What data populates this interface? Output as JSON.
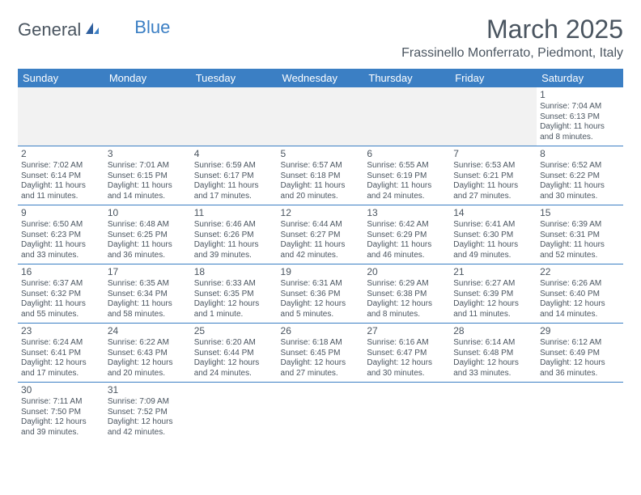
{
  "logo": {
    "general": "General",
    "blue": "Blue"
  },
  "title": "March 2025",
  "location": "Frassinello Monferrato, Piedmont, Italy",
  "colors": {
    "header_bg": "#3b7fc4",
    "header_text": "#ffffff",
    "cell_border": "#3b7fc4",
    "blank_bg": "#f2f2f2",
    "text": "#4a5560"
  },
  "day_headers": [
    "Sunday",
    "Monday",
    "Tuesday",
    "Wednesday",
    "Thursday",
    "Friday",
    "Saturday"
  ],
  "weeks": [
    [
      null,
      null,
      null,
      null,
      null,
      null,
      {
        "n": "1",
        "sunrise": "7:04 AM",
        "sunset": "6:13 PM",
        "dl": "11 hours and 8 minutes."
      }
    ],
    [
      {
        "n": "2",
        "sunrise": "7:02 AM",
        "sunset": "6:14 PM",
        "dl": "11 hours and 11 minutes."
      },
      {
        "n": "3",
        "sunrise": "7:01 AM",
        "sunset": "6:15 PM",
        "dl": "11 hours and 14 minutes."
      },
      {
        "n": "4",
        "sunrise": "6:59 AM",
        "sunset": "6:17 PM",
        "dl": "11 hours and 17 minutes."
      },
      {
        "n": "5",
        "sunrise": "6:57 AM",
        "sunset": "6:18 PM",
        "dl": "11 hours and 20 minutes."
      },
      {
        "n": "6",
        "sunrise": "6:55 AM",
        "sunset": "6:19 PM",
        "dl": "11 hours and 24 minutes."
      },
      {
        "n": "7",
        "sunrise": "6:53 AM",
        "sunset": "6:21 PM",
        "dl": "11 hours and 27 minutes."
      },
      {
        "n": "8",
        "sunrise": "6:52 AM",
        "sunset": "6:22 PM",
        "dl": "11 hours and 30 minutes."
      }
    ],
    [
      {
        "n": "9",
        "sunrise": "6:50 AM",
        "sunset": "6:23 PM",
        "dl": "11 hours and 33 minutes."
      },
      {
        "n": "10",
        "sunrise": "6:48 AM",
        "sunset": "6:25 PM",
        "dl": "11 hours and 36 minutes."
      },
      {
        "n": "11",
        "sunrise": "6:46 AM",
        "sunset": "6:26 PM",
        "dl": "11 hours and 39 minutes."
      },
      {
        "n": "12",
        "sunrise": "6:44 AM",
        "sunset": "6:27 PM",
        "dl": "11 hours and 42 minutes."
      },
      {
        "n": "13",
        "sunrise": "6:42 AM",
        "sunset": "6:29 PM",
        "dl": "11 hours and 46 minutes."
      },
      {
        "n": "14",
        "sunrise": "6:41 AM",
        "sunset": "6:30 PM",
        "dl": "11 hours and 49 minutes."
      },
      {
        "n": "15",
        "sunrise": "6:39 AM",
        "sunset": "6:31 PM",
        "dl": "11 hours and 52 minutes."
      }
    ],
    [
      {
        "n": "16",
        "sunrise": "6:37 AM",
        "sunset": "6:32 PM",
        "dl": "11 hours and 55 minutes."
      },
      {
        "n": "17",
        "sunrise": "6:35 AM",
        "sunset": "6:34 PM",
        "dl": "11 hours and 58 minutes."
      },
      {
        "n": "18",
        "sunrise": "6:33 AM",
        "sunset": "6:35 PM",
        "dl": "12 hours and 1 minute."
      },
      {
        "n": "19",
        "sunrise": "6:31 AM",
        "sunset": "6:36 PM",
        "dl": "12 hours and 5 minutes."
      },
      {
        "n": "20",
        "sunrise": "6:29 AM",
        "sunset": "6:38 PM",
        "dl": "12 hours and 8 minutes."
      },
      {
        "n": "21",
        "sunrise": "6:27 AM",
        "sunset": "6:39 PM",
        "dl": "12 hours and 11 minutes."
      },
      {
        "n": "22",
        "sunrise": "6:26 AM",
        "sunset": "6:40 PM",
        "dl": "12 hours and 14 minutes."
      }
    ],
    [
      {
        "n": "23",
        "sunrise": "6:24 AM",
        "sunset": "6:41 PM",
        "dl": "12 hours and 17 minutes."
      },
      {
        "n": "24",
        "sunrise": "6:22 AM",
        "sunset": "6:43 PM",
        "dl": "12 hours and 20 minutes."
      },
      {
        "n": "25",
        "sunrise": "6:20 AM",
        "sunset": "6:44 PM",
        "dl": "12 hours and 24 minutes."
      },
      {
        "n": "26",
        "sunrise": "6:18 AM",
        "sunset": "6:45 PM",
        "dl": "12 hours and 27 minutes."
      },
      {
        "n": "27",
        "sunrise": "6:16 AM",
        "sunset": "6:47 PM",
        "dl": "12 hours and 30 minutes."
      },
      {
        "n": "28",
        "sunrise": "6:14 AM",
        "sunset": "6:48 PM",
        "dl": "12 hours and 33 minutes."
      },
      {
        "n": "29",
        "sunrise": "6:12 AM",
        "sunset": "6:49 PM",
        "dl": "12 hours and 36 minutes."
      }
    ],
    [
      {
        "n": "30",
        "sunrise": "7:11 AM",
        "sunset": "7:50 PM",
        "dl": "12 hours and 39 minutes."
      },
      {
        "n": "31",
        "sunrise": "7:09 AM",
        "sunset": "7:52 PM",
        "dl": "12 hours and 42 minutes."
      },
      null,
      null,
      null,
      null,
      null
    ]
  ],
  "labels": {
    "sunrise": "Sunrise:",
    "sunset": "Sunset:",
    "daylight": "Daylight:"
  }
}
